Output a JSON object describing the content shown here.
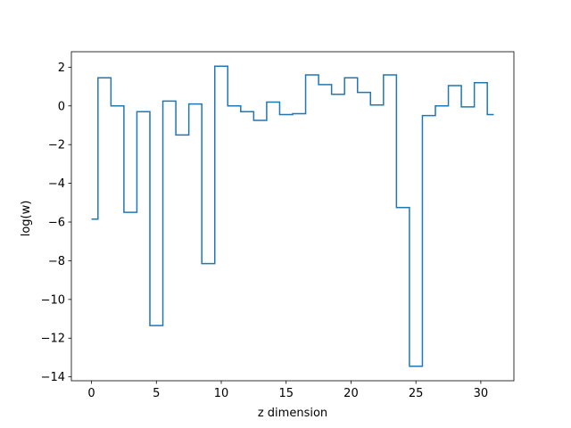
{
  "chart_data": {
    "type": "line",
    "drawstyle": "steps-mid",
    "title": "",
    "xlabel": "z dimension",
    "ylabel": "log(w)",
    "xlim": [
      -1.55,
      32.55
    ],
    "ylim": [
      -14.2,
      2.8
    ],
    "xticks": [
      0,
      5,
      10,
      15,
      20,
      25,
      30
    ],
    "xtick_labels": [
      "0",
      "5",
      "10",
      "15",
      "20",
      "25",
      "30"
    ],
    "yticks": [
      2,
      0,
      -2,
      -4,
      -6,
      -8,
      -10,
      -12,
      -14
    ],
    "ytick_labels": [
      "2",
      "0",
      "−2",
      "−4",
      "−6",
      "−8",
      "−10",
      "−12",
      "−14"
    ],
    "grid": false,
    "line_color": "#1f77b4",
    "series": [
      {
        "x": [
          0,
          1,
          2,
          3,
          4,
          5,
          6,
          7,
          8,
          9,
          10,
          11,
          12,
          13,
          14,
          15,
          16,
          17,
          18,
          19,
          20,
          21,
          22,
          23,
          24,
          25,
          26,
          27,
          28,
          29,
          30,
          31
        ],
        "y": [
          -5.85,
          1.45,
          0.0,
          -5.5,
          -0.3,
          -11.35,
          0.25,
          -1.5,
          0.1,
          -8.15,
          2.05,
          0.0,
          -0.3,
          -0.75,
          0.2,
          -0.45,
          -0.4,
          1.6,
          1.1,
          0.6,
          1.45,
          0.7,
          0.05,
          1.6,
          -5.25,
          -13.45,
          -0.5,
          0.0,
          1.05,
          -0.05,
          1.2,
          -0.45
        ]
      }
    ]
  }
}
